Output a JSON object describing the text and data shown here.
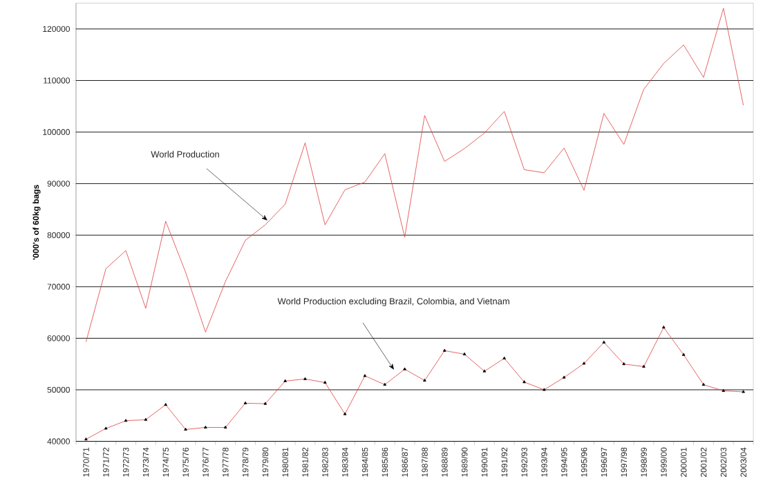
{
  "chart_data": {
    "type": "line",
    "ylabel": "'000's of 60kg bags",
    "categories": [
      "1970/71",
      "1971/72",
      "1972/73",
      "1973/74",
      "1974/75",
      "1975/76",
      "1976/77",
      "1977/78",
      "1978/79",
      "1979/80",
      "1980/81",
      "1981/82",
      "1982/83",
      "1983/84",
      "1984/85",
      "1985/86",
      "1986/87",
      "1987/88",
      "1988/89",
      "1989/90",
      "1990/91",
      "1991/92",
      "1992/93",
      "1993/94",
      "1994/95",
      "1995/96",
      "1996/97",
      "1997/98",
      "1998/99",
      "1999/00",
      "2000/01",
      "2001/02",
      "2002/03",
      "2003/04"
    ],
    "series": [
      {
        "color": "#e03c3c",
        "marker": "none",
        "values": [
          59300,
          73500,
          77000,
          65800,
          82700,
          72800,
          61200,
          71000,
          79000,
          82000,
          86000,
          97900,
          82000,
          88800,
          90300,
          95800,
          79600,
          103200,
          94300,
          96800,
          99800,
          104000,
          92700,
          92100,
          96900,
          88700,
          103600,
          97600,
          108300,
          113300,
          116900,
          110600,
          124000,
          105200
        ]
      },
      {
        "color": "#e03c3c",
        "marker": "triangle",
        "values": [
          40400,
          42500,
          44000,
          44200,
          47100,
          42300,
          42700,
          42700,
          47400,
          47300,
          51700,
          52100,
          51400,
          45300,
          52700,
          51000,
          54000,
          51800,
          57600,
          56900,
          53600,
          56100,
          51500,
          50000,
          52400,
          55100,
          59200,
          55000,
          54500,
          62100,
          56800,
          51000,
          49800,
          49600
        ]
      }
    ],
    "ylim": [
      40000,
      125000
    ],
    "yticks": [
      40000,
      50000,
      60000,
      70000,
      80000,
      90000,
      100000,
      110000,
      120000
    ],
    "grid": "y",
    "line_style": "solid",
    "annotations": [
      "World Production",
      "World Production excluding Brazil, Colombia, and Vietnam"
    ]
  }
}
